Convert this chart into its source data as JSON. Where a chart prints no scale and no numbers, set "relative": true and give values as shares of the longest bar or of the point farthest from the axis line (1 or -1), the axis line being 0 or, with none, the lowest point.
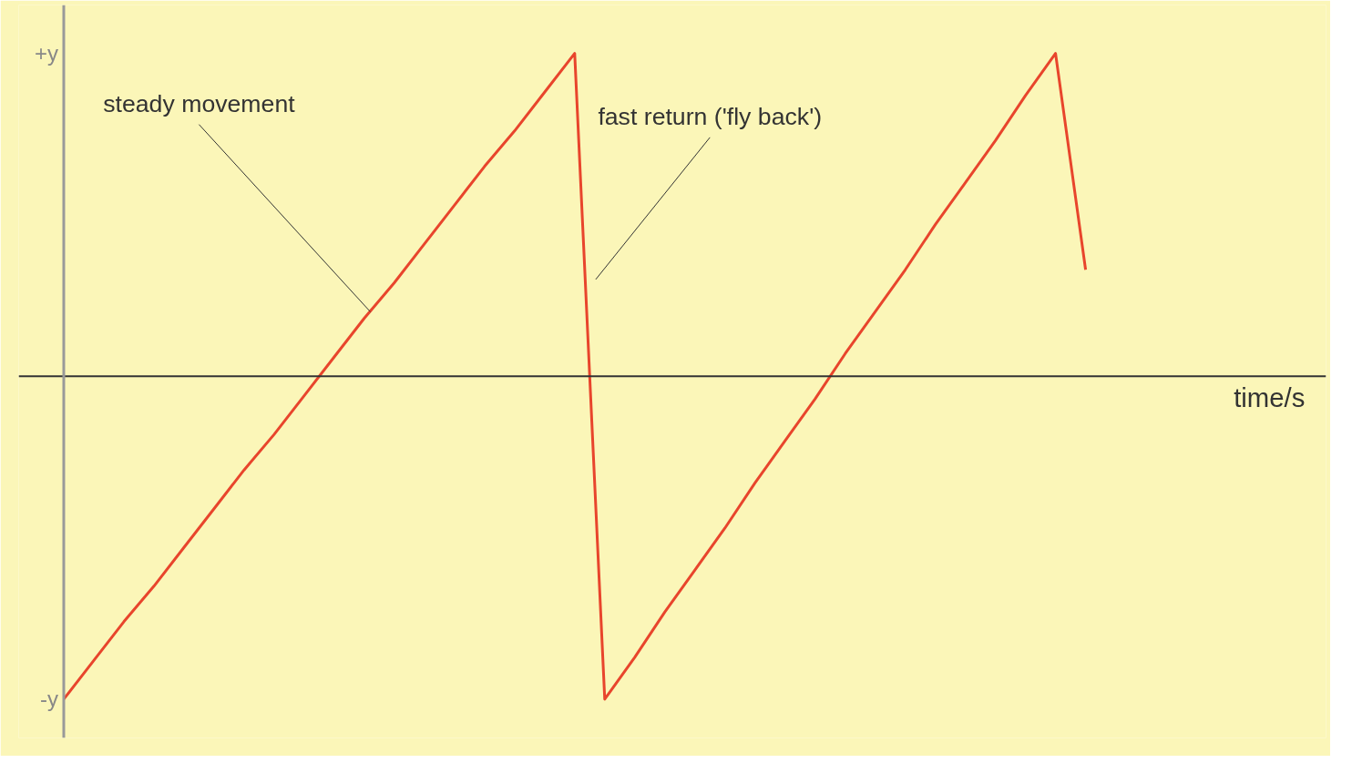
{
  "chart_data": {
    "type": "line",
    "relative": true,
    "xlabel": "time/s",
    "grid": false,
    "marker": "none",
    "line_style": "solid",
    "categories": [
      null,
      null,
      null,
      null,
      null,
      null,
      null,
      null,
      null,
      null,
      null,
      null,
      null,
      null,
      null,
      null,
      null,
      null,
      null,
      null,
      null,
      null,
      null,
      null,
      null,
      null,
      null,
      null,
      null,
      null,
      null,
      null,
      null,
      null,
      null
    ],
    "series": [
      {
        "color": "#e8452c",
        "values": [
          -1,
          -0.88,
          -0.76,
          -0.65,
          -0.53,
          -0.41,
          -0.29,
          -0.18,
          -0.06,
          0.06,
          0.18,
          0.29,
          0.41,
          0.53,
          0.65,
          0.76,
          0.88,
          1,
          -1,
          -0.87,
          -0.73,
          -0.6,
          -0.47,
          -0.33,
          -0.2,
          -0.07,
          0.07,
          0.2,
          0.33,
          0.47,
          0.6,
          0.73,
          0.87,
          1,
          0.33
        ]
      }
    ],
    "annotations": [
      "steady movement",
      "fast return ('fly back')",
      "+y",
      "-y"
    ]
  }
}
